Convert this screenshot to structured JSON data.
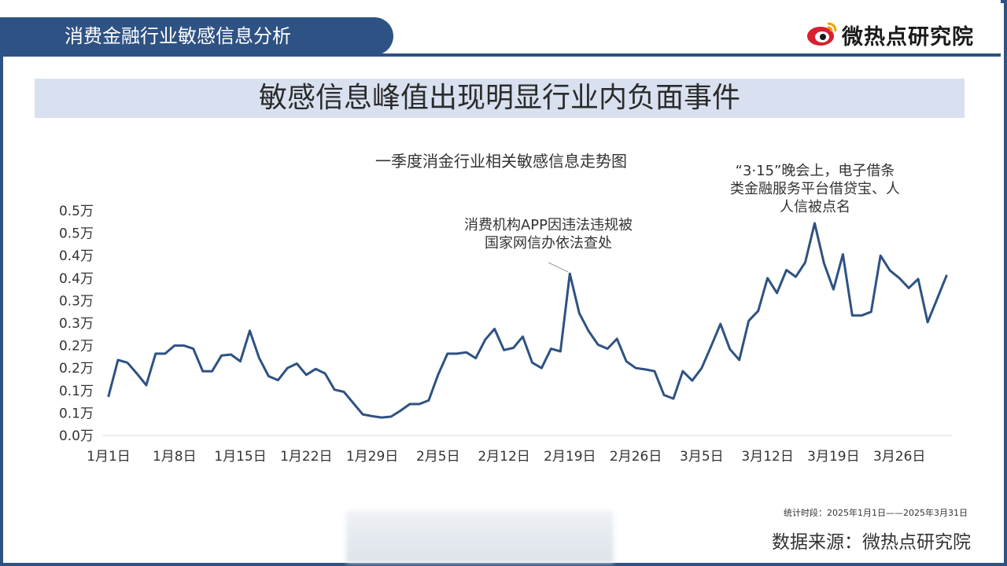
{
  "header": {
    "section_title": "消费金融行业敏感信息分析",
    "logo_text": "微热点研究院"
  },
  "banner": {
    "title": "敏感信息峰值出现明显行业内负面事件"
  },
  "footer": {
    "period": "统计时段：2025年1月1日——2025年3月31日",
    "source": "数据来源：微热点研究院"
  },
  "colors": {
    "primary": "#2e5283",
    "banner_bg": "#d9e1f0",
    "line": "#2e5283",
    "logo_red": "#d8202e"
  },
  "chart_data": {
    "type": "line",
    "title": "一季度消金行业相关敏感信息走势图",
    "xlabel": "",
    "ylabel": "",
    "ytick_labels": [
      "0.0万",
      "0.1万",
      "0.1万",
      "0.2万",
      "0.2万",
      "0.3万",
      "0.3万",
      "0.4万",
      "0.4万",
      "0.5万",
      "0.5万"
    ],
    "ylim": [
      0,
      0.5
    ],
    "xtick_labels": [
      "1月1日",
      "1月8日",
      "1月15日",
      "1月22日",
      "1月29日",
      "2月5日",
      "2月12日",
      "2月19日",
      "2月26日",
      "3月5日",
      "3月12日",
      "3月19日",
      "3月26日"
    ],
    "xtick_days": [
      1,
      8,
      15,
      22,
      29,
      36,
      43,
      50,
      57,
      64,
      71,
      78,
      85
    ],
    "grid": false,
    "legend": "none",
    "series": [
      {
        "x": [
          1,
          2,
          3,
          4,
          5,
          6,
          7,
          8,
          9,
          10,
          11,
          12,
          13,
          14,
          15,
          16,
          17,
          18,
          19,
          20,
          21,
          22,
          23,
          24,
          25,
          26,
          27,
          28,
          29,
          30,
          31,
          32,
          33,
          34,
          35,
          36,
          37,
          38,
          39,
          40,
          41,
          42,
          43,
          44,
          45,
          46,
          47,
          48,
          49,
          50,
          51,
          52,
          53,
          54,
          55,
          56,
          57,
          58,
          59,
          60,
          61,
          62,
          63,
          64,
          65,
          66,
          67,
          68,
          69,
          70,
          71,
          72,
          73,
          74,
          75,
          76,
          77,
          78,
          79,
          80,
          81,
          82,
          83,
          84,
          85,
          86,
          87,
          88,
          89,
          90
        ],
        "values": [
          0.088,
          0.168,
          0.162,
          0.138,
          0.112,
          0.182,
          0.182,
          0.2,
          0.2,
          0.193,
          0.143,
          0.143,
          0.178,
          0.18,
          0.165,
          0.233,
          0.172,
          0.132,
          0.123,
          0.15,
          0.16,
          0.135,
          0.148,
          0.138,
          0.102,
          0.097,
          0.072,
          0.047,
          0.043,
          0.04,
          0.042,
          0.055,
          0.07,
          0.07,
          0.078,
          0.135,
          0.182,
          0.182,
          0.185,
          0.172,
          0.213,
          0.237,
          0.19,
          0.195,
          0.22,
          0.162,
          0.15,
          0.193,
          0.187,
          0.36,
          0.272,
          0.232,
          0.202,
          0.193,
          0.215,
          0.165,
          0.15,
          0.147,
          0.143,
          0.09,
          0.082,
          0.143,
          0.122,
          0.15,
          0.198,
          0.248,
          0.192,
          0.168,
          0.255,
          0.277,
          0.35,
          0.317,
          0.368,
          0.353,
          0.385,
          0.472,
          0.383,
          0.325,
          0.403,
          0.267,
          0.267,
          0.275,
          0.4,
          0.367,
          0.35,
          0.328,
          0.348,
          0.252,
          0.303,
          0.355
        ]
      }
    ],
    "annotations": [
      {
        "lines": [
          "消费机构APP因违法违规被",
          "国家网信办依法查处"
        ],
        "x": 50
      },
      {
        "lines": [
          "“3·15”晚会上，电子借条",
          "类金融服务平台借贷宝、人",
          "人信被点名"
        ],
        "x": 76
      }
    ]
  }
}
